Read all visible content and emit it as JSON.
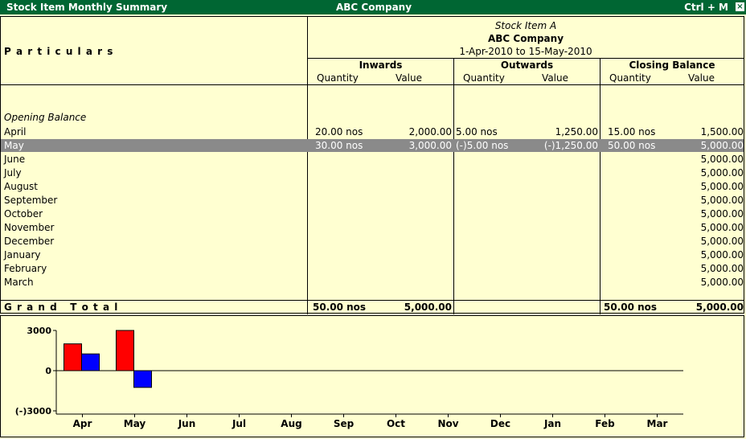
{
  "window": {
    "title": "Stock Item Monthly Summary",
    "company": "ABC Company",
    "shortcut": "Ctrl + M",
    "close_glyph": "×"
  },
  "report": {
    "particulars_label": "P a r t i c u l a r s",
    "item_name": "Stock Item A",
    "company": "ABC Company",
    "period": "1-Apr-2010 to 15-May-2010",
    "columns": {
      "inwards": "Inwards",
      "outwards": "Outwards",
      "closing": "Closing Balance",
      "quantity": "Quantity",
      "value": "Value"
    },
    "opening_label": "Opening Balance",
    "rows": [
      {
        "month": "April",
        "in_qty": "20.00 nos",
        "in_val": "2,000.00",
        "out_qty": "5.00 nos",
        "out_val": "1,250.00",
        "cl_qty": "15.00 nos",
        "cl_val": "1,500.00"
      },
      {
        "month": "May",
        "in_qty": "30.00 nos",
        "in_val": "3,000.00",
        "out_qty": "(-)5.00 nos",
        "out_val": "(-)1,250.00",
        "cl_qty": "50.00 nos",
        "cl_val": "5,000.00"
      },
      {
        "month": "June",
        "in_qty": "",
        "in_val": "",
        "out_qty": "",
        "out_val": "",
        "cl_qty": "",
        "cl_val": "5,000.00"
      },
      {
        "month": "July",
        "in_qty": "",
        "in_val": "",
        "out_qty": "",
        "out_val": "",
        "cl_qty": "",
        "cl_val": "5,000.00"
      },
      {
        "month": "August",
        "in_qty": "",
        "in_val": "",
        "out_qty": "",
        "out_val": "",
        "cl_qty": "",
        "cl_val": "5,000.00"
      },
      {
        "month": "September",
        "in_qty": "",
        "in_val": "",
        "out_qty": "",
        "out_val": "",
        "cl_qty": "",
        "cl_val": "5,000.00"
      },
      {
        "month": "October",
        "in_qty": "",
        "in_val": "",
        "out_qty": "",
        "out_val": "",
        "cl_qty": "",
        "cl_val": "5,000.00"
      },
      {
        "month": "November",
        "in_qty": "",
        "in_val": "",
        "out_qty": "",
        "out_val": "",
        "cl_qty": "",
        "cl_val": "5,000.00"
      },
      {
        "month": "December",
        "in_qty": "",
        "in_val": "",
        "out_qty": "",
        "out_val": "",
        "cl_qty": "",
        "cl_val": "5,000.00"
      },
      {
        "month": "January",
        "in_qty": "",
        "in_val": "",
        "out_qty": "",
        "out_val": "",
        "cl_qty": "",
        "cl_val": "5,000.00"
      },
      {
        "month": "February",
        "in_qty": "",
        "in_val": "",
        "out_qty": "",
        "out_val": "",
        "cl_qty": "",
        "cl_val": "5,000.00"
      },
      {
        "month": "March",
        "in_qty": "",
        "in_val": "",
        "out_qty": "",
        "out_val": "",
        "cl_qty": "",
        "cl_val": "5,000.00"
      }
    ],
    "selected_month": "May",
    "grand_total": {
      "label": "G r a n d   T o t a l",
      "in_qty": "50.00 nos",
      "in_val": "5,000.00",
      "out_qty": "",
      "out_val": "",
      "cl_qty": "50.00 nos",
      "cl_val": "5,000.00"
    }
  },
  "chart_data": {
    "type": "bar",
    "categories": [
      "Apr",
      "May",
      "Jun",
      "Jul",
      "Aug",
      "Sep",
      "Oct",
      "Nov",
      "Dec",
      "Jan",
      "Feb",
      "Mar"
    ],
    "series": [
      {
        "values": [
          2000,
          3000,
          0,
          0,
          0,
          0,
          0,
          0,
          0,
          0,
          0,
          0
        ],
        "color": "#FF0000"
      },
      {
        "values": [
          1250,
          -1250,
          0,
          0,
          0,
          0,
          0,
          0,
          0,
          0,
          0,
          0
        ],
        "color": "#0000FF"
      }
    ],
    "y_ticks": [
      "3000",
      "0",
      "(-)3000"
    ],
    "ylim": [
      -3000,
      3000
    ],
    "grid": false
  }
}
